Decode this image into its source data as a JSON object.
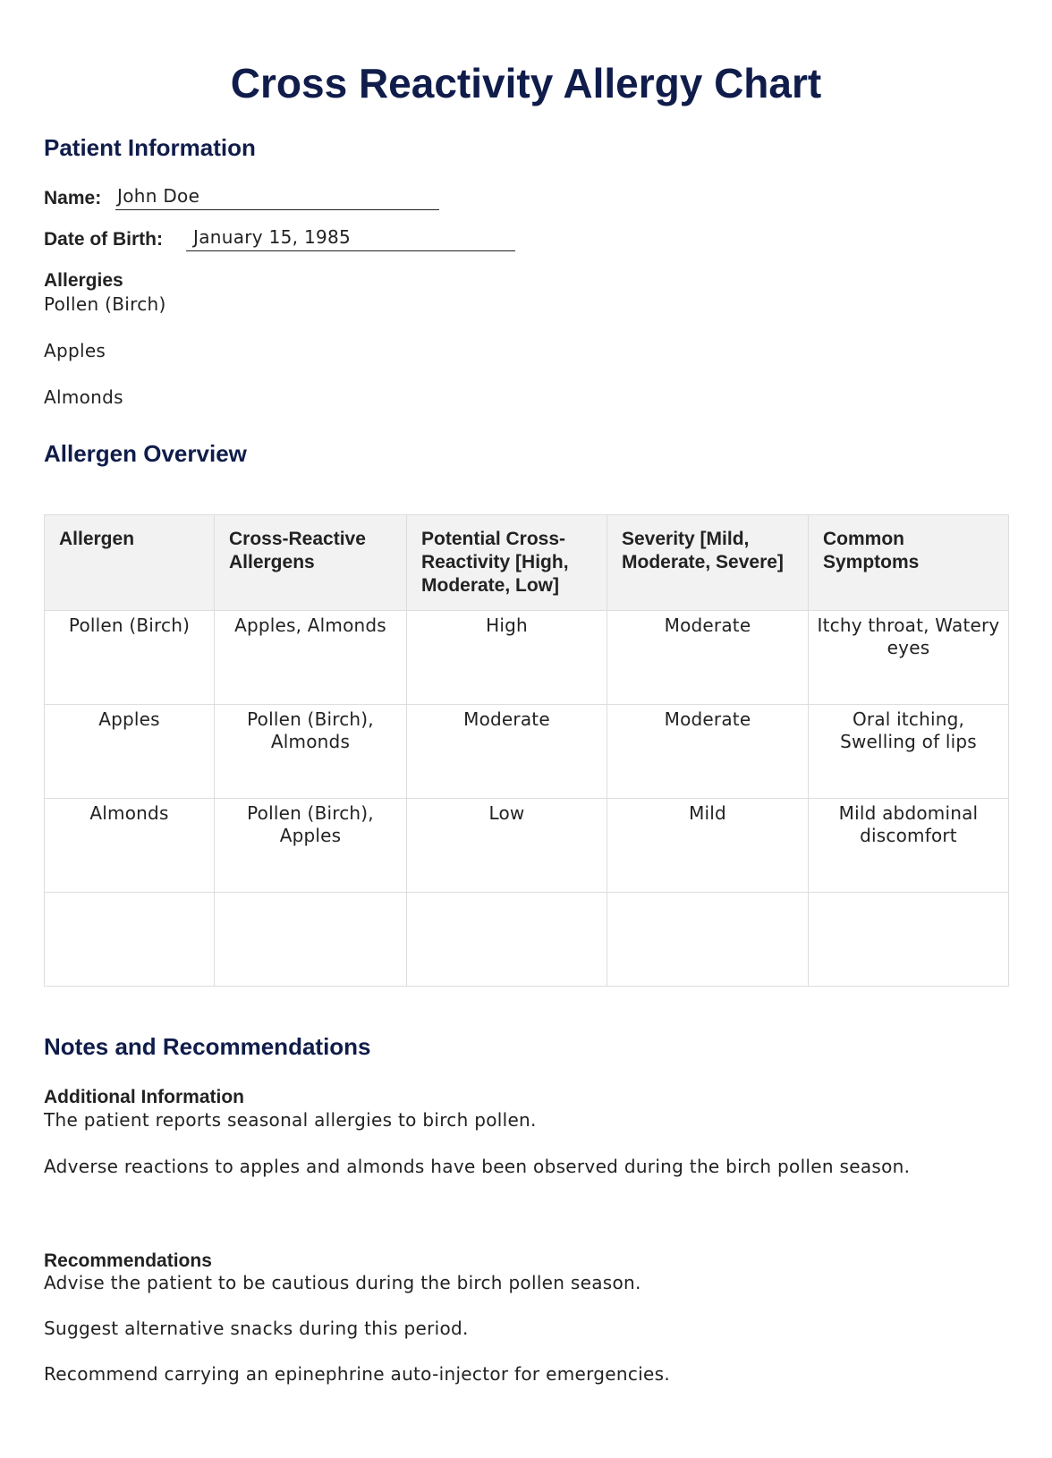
{
  "title": "Cross Reactivity Allergy Chart",
  "patient": {
    "heading": "Patient Information",
    "name_label": "Name:",
    "name_value": "John Doe",
    "dob_label": "Date of Birth:",
    "dob_value": "January 15, 1985",
    "allergies_label": "Allergies",
    "allergies": [
      "Pollen (Birch)",
      "Apples",
      "Almonds"
    ]
  },
  "overview": {
    "heading": "Allergen Overview",
    "columns": [
      "Allergen",
      "Cross-Reactive Allergens",
      "Potential Cross-Reactivity [High, Moderate, Low]",
      "Severity [Mild, Moderate, Severe]",
      "Common Symptoms"
    ],
    "rows": [
      [
        "Pollen (Birch)",
        "Apples, Almonds",
        "High",
        "Moderate",
        "Itchy throat, Watery eyes"
      ],
      [
        "Apples",
        "Pollen (Birch), Almonds",
        "Moderate",
        "Moderate",
        "Oral itching, Swelling of lips"
      ],
      [
        "Almonds",
        "Pollen (Birch), Apples",
        "Low",
        "Mild",
        "Mild abdominal discomfort"
      ],
      [
        "",
        "",
        "",
        "",
        ""
      ]
    ]
  },
  "notes": {
    "heading": "Notes and Recommendations",
    "additional_label": "Additional Information",
    "additional": [
      "The patient reports seasonal allergies to birch pollen.",
      "Adverse reactions to apples and almonds have been observed during the birch pollen season."
    ],
    "recommendations_label": "Recommendations",
    "recommendations": [
      "Advise the patient to be cautious during the birch pollen season.",
      "Suggest alternative snacks during this period.",
      "Recommend carrying an epinephrine auto-injector for emergencies."
    ]
  }
}
